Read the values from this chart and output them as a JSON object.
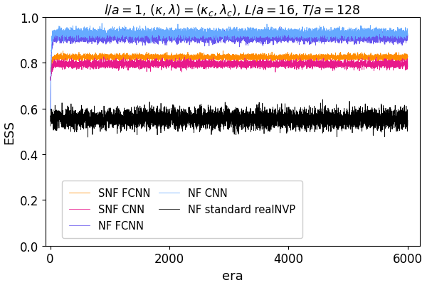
{
  "title": "$l/a = 1$, $(\\kappa, \\lambda) = (\\kappa_c, \\lambda_c)$, $L/a = 16$, $T/a = 128$",
  "xlabel": "era",
  "ylabel": "ESS",
  "xlim": [
    -80,
    6200
  ],
  "ylim": [
    0.0,
    1.0
  ],
  "yticks": [
    0.0,
    0.2,
    0.4,
    0.6,
    0.8,
    1.0
  ],
  "xticks": [
    0,
    2000,
    4000,
    6000
  ],
  "total_eras": 6000,
  "lines": [
    {
      "key": "snf_fcnn",
      "color": "#ff8c00",
      "label": "SNF FCNN",
      "plateau": 0.825,
      "noise": 0.007,
      "tau": 18,
      "start": 5,
      "init": 0.76
    },
    {
      "key": "snf_cnn",
      "color": "#e8198b",
      "label": "SNF CNN",
      "plateau": 0.795,
      "noise": 0.009,
      "tau": 22,
      "start": 5,
      "init": 0.73
    },
    {
      "key": "nf_fcnn",
      "color": "#6655ee",
      "label": "NF FCNN",
      "plateau": 0.91,
      "noise": 0.011,
      "tau": 12,
      "start": 5,
      "init": 0.6
    },
    {
      "key": "nf_cnn",
      "color": "#66aaff",
      "label": "NF CNN",
      "plateau": 0.93,
      "noise": 0.011,
      "tau": 10,
      "start": 5,
      "init": 0.6
    },
    {
      "key": "nf_realnvp",
      "color": "#000000",
      "label": "NF standard realNVP",
      "plateau": 0.555,
      "noise": 0.023,
      "tau": 0,
      "start": 5,
      "init": 0.555
    }
  ],
  "legend_ncol": 2,
  "title_fontsize": 12.5,
  "label_fontsize": 13,
  "tick_fontsize": 12,
  "legend_fontsize": 10.5
}
